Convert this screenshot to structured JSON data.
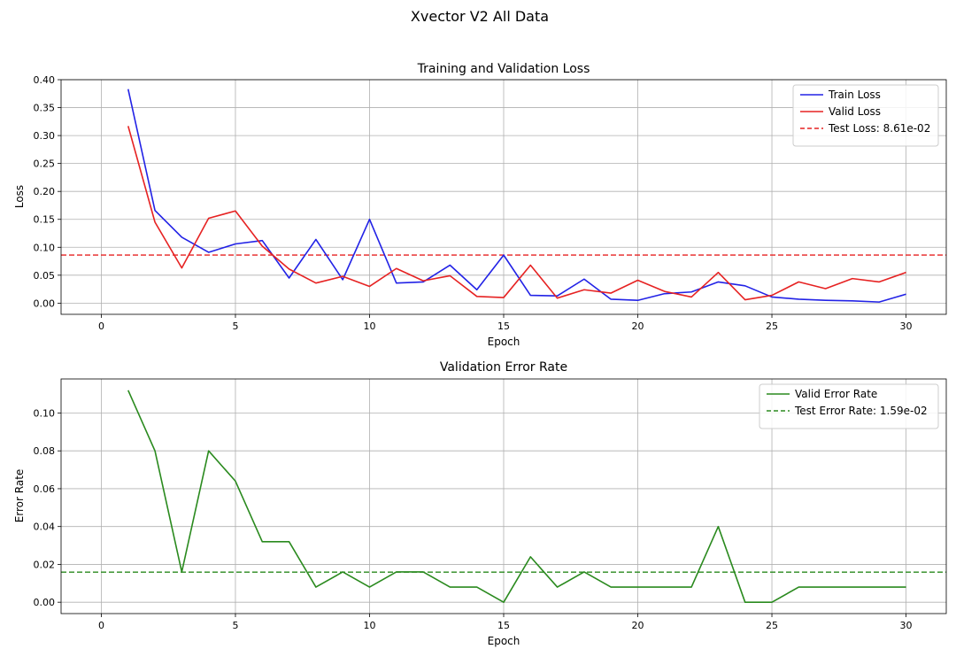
{
  "figure": {
    "suptitle": "Xvector V2 All Data"
  },
  "chart_data": [
    {
      "type": "line",
      "title": "Training and Validation Loss",
      "xlabel": "Epoch",
      "ylabel": "Loss",
      "xlim": [
        -1.5,
        31.5
      ],
      "ylim": [
        -0.02,
        0.4
      ],
      "xticks": [
        0,
        5,
        10,
        15,
        20,
        25,
        30
      ],
      "xtick_labels": [
        "0",
        "5",
        "10",
        "15",
        "20",
        "25",
        "30"
      ],
      "yticks": [
        0.0,
        0.05,
        0.1,
        0.15,
        0.2,
        0.25,
        0.3,
        0.35,
        0.4
      ],
      "ytick_labels": [
        "0.00",
        "0.05",
        "0.10",
        "0.15",
        "0.20",
        "0.25",
        "0.30",
        "0.35",
        "0.40"
      ],
      "grid": true,
      "legend_position": "top-right",
      "x": [
        1,
        2,
        3,
        4,
        5,
        6,
        7,
        8,
        9,
        10,
        11,
        12,
        13,
        14,
        15,
        16,
        17,
        18,
        19,
        20,
        21,
        22,
        23,
        24,
        25,
        26,
        27,
        28,
        29,
        30
      ],
      "series": [
        {
          "name": "Train Loss",
          "color": "#2222e6",
          "style": "solid",
          "values": [
            0.383,
            0.166,
            0.118,
            0.091,
            0.106,
            0.112,
            0.045,
            0.114,
            0.042,
            0.15,
            0.036,
            0.038,
            0.068,
            0.024,
            0.086,
            0.014,
            0.013,
            0.043,
            0.007,
            0.005,
            0.017,
            0.02,
            0.038,
            0.031,
            0.011,
            0.007,
            0.005,
            0.004,
            0.002,
            0.016
          ]
        },
        {
          "name": "Valid Loss",
          "color": "#e62222",
          "style": "solid",
          "values": [
            0.317,
            0.145,
            0.063,
            0.152,
            0.165,
            0.102,
            0.061,
            0.036,
            0.048,
            0.03,
            0.062,
            0.04,
            0.049,
            0.012,
            0.01,
            0.068,
            0.009,
            0.024,
            0.018,
            0.041,
            0.021,
            0.011,
            0.055,
            0.006,
            0.014,
            0.038,
            0.026,
            0.044,
            0.038,
            0.055
          ]
        }
      ],
      "hlines": [
        {
          "name": "Test Loss: 8.61e-02",
          "value": 0.0861,
          "color": "#e62222",
          "style": "dashed"
        }
      ]
    },
    {
      "type": "line",
      "title": "Validation Error Rate",
      "xlabel": "Epoch",
      "ylabel": "Error Rate",
      "xlim": [
        -1.5,
        31.5
      ],
      "ylim": [
        -0.006,
        0.118
      ],
      "xticks": [
        0,
        5,
        10,
        15,
        20,
        25,
        30
      ],
      "xtick_labels": [
        "0",
        "5",
        "10",
        "15",
        "20",
        "25",
        "30"
      ],
      "yticks": [
        0.0,
        0.02,
        0.04,
        0.06,
        0.08,
        0.1
      ],
      "ytick_labels": [
        "0.00",
        "0.02",
        "0.04",
        "0.06",
        "0.08",
        "0.10"
      ],
      "grid": true,
      "legend_position": "top-right",
      "x": [
        1,
        2,
        3,
        4,
        5,
        6,
        7,
        8,
        9,
        10,
        11,
        12,
        13,
        14,
        15,
        16,
        17,
        18,
        19,
        20,
        21,
        22,
        23,
        24,
        25,
        26,
        27,
        28,
        29,
        30
      ],
      "series": [
        {
          "name": "Valid Error Rate",
          "color": "#2a8a1e",
          "style": "solid",
          "values": [
            0.112,
            0.08,
            0.016,
            0.08,
            0.064,
            0.032,
            0.032,
            0.008,
            0.016,
            0.008,
            0.016,
            0.016,
            0.008,
            0.008,
            0.0,
            0.024,
            0.008,
            0.016,
            0.008,
            0.008,
            0.008,
            0.008,
            0.04,
            0.0,
            0.0,
            0.008,
            0.008,
            0.008,
            0.008,
            0.008
          ]
        }
      ],
      "hlines": [
        {
          "name": "Test Error Rate: 1.59e-02",
          "value": 0.0159,
          "color": "#2a8a1e",
          "style": "dashed"
        }
      ]
    }
  ]
}
